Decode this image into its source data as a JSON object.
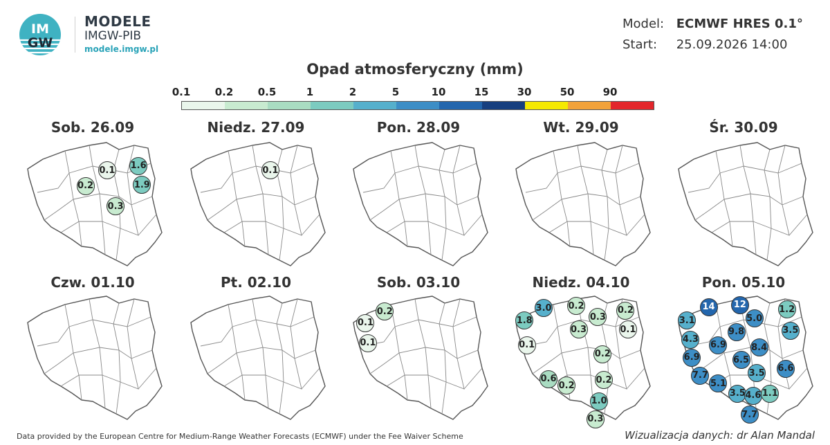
{
  "brand": {
    "title": "MODELE",
    "subtitle": "IMGW-PIB",
    "url": "modele.imgw.pl",
    "logo_text_top": "IM",
    "logo_text_bottom": "GW"
  },
  "meta": {
    "model_label": "Model:",
    "model_value": "ECMWF HRES 0.1°",
    "start_label": "Start:",
    "start_value": "25.09.2026 14:00"
  },
  "legend": {
    "title": "Opad atmosferyczny (mm)",
    "ticks": [
      "0.1",
      "0.2",
      "0.5",
      "1",
      "2",
      "5",
      "10",
      "15",
      "30",
      "50",
      "90"
    ],
    "colors": [
      "#eaf6ec",
      "#c8ebd0",
      "#a9dcc2",
      "#7ccbc0",
      "#56b0cc",
      "#3d8ec6",
      "#2366ad",
      "#173f7f",
      "#f5e900",
      "#f2a23a",
      "#e3262b"
    ]
  },
  "days": [
    {
      "label": "Sob. 26.09",
      "points": [
        {
          "v": "0.1",
          "x": 0.62,
          "y": 0.18
        },
        {
          "v": "1.6",
          "x": 0.88,
          "y": 0.14
        },
        {
          "v": "0.2",
          "x": 0.44,
          "y": 0.32
        },
        {
          "v": "1.9",
          "x": 0.91,
          "y": 0.31
        },
        {
          "v": "0.3",
          "x": 0.69,
          "y": 0.5
        }
      ]
    },
    {
      "label": "Niedz. 27.09",
      "points": [
        {
          "v": "0.1",
          "x": 0.62,
          "y": 0.18
        }
      ]
    },
    {
      "label": "Pon. 28.09",
      "points": []
    },
    {
      "label": "Wt. 29.09",
      "points": []
    },
    {
      "label": "Śr. 30.09",
      "points": []
    },
    {
      "label": "Czw. 01.10",
      "points": []
    },
    {
      "label": "Pt. 02.10",
      "points": []
    },
    {
      "label": "Sob. 03.10",
      "points": [
        {
          "v": "0.2",
          "x": 0.22,
          "y": 0.07
        },
        {
          "v": "0.1",
          "x": 0.06,
          "y": 0.17
        },
        {
          "v": "0.1",
          "x": 0.08,
          "y": 0.35
        }
      ]
    },
    {
      "label": "Niedz. 04.10",
      "points": [
        {
          "v": "3.0",
          "x": 0.19,
          "y": 0.04
        },
        {
          "v": "0.2",
          "x": 0.46,
          "y": 0.02
        },
        {
          "v": "0.2",
          "x": 0.87,
          "y": 0.06
        },
        {
          "v": "1.8",
          "x": 0.03,
          "y": 0.15
        },
        {
          "v": "0.3",
          "x": 0.64,
          "y": 0.12
        },
        {
          "v": "0.1",
          "x": 0.89,
          "y": 0.23
        },
        {
          "v": "0.3",
          "x": 0.48,
          "y": 0.23
        },
        {
          "v": "0.1",
          "x": 0.05,
          "y": 0.37
        },
        {
          "v": "0.2",
          "x": 0.68,
          "y": 0.45
        },
        {
          "v": "0.6",
          "x": 0.23,
          "y": 0.67
        },
        {
          "v": "0.2",
          "x": 0.38,
          "y": 0.73
        },
        {
          "v": "0.2",
          "x": 0.69,
          "y": 0.68
        },
        {
          "v": "1.0",
          "x": 0.65,
          "y": 0.87
        },
        {
          "v": "0.3",
          "x": 0.62,
          "y": 1.03
        }
      ]
    },
    {
      "label": "Pon. 05.10",
      "points": [
        {
          "v": "14",
          "x": 0.21,
          "y": 0.03
        },
        {
          "v": "12",
          "x": 0.47,
          "y": 0.01
        },
        {
          "v": "1.2",
          "x": 0.86,
          "y": 0.05
        },
        {
          "v": "3.1",
          "x": 0.03,
          "y": 0.15
        },
        {
          "v": "5.0",
          "x": 0.59,
          "y": 0.13
        },
        {
          "v": "3.5",
          "x": 0.89,
          "y": 0.24
        },
        {
          "v": "4.3",
          "x": 0.06,
          "y": 0.32
        },
        {
          "v": "9.8",
          "x": 0.44,
          "y": 0.25
        },
        {
          "v": "6.9",
          "x": 0.29,
          "y": 0.37
        },
        {
          "v": "8.4",
          "x": 0.63,
          "y": 0.39
        },
        {
          "v": "6.9",
          "x": 0.07,
          "y": 0.48
        },
        {
          "v": "6.5",
          "x": 0.48,
          "y": 0.5
        },
        {
          "v": "6.6",
          "x": 0.85,
          "y": 0.58
        },
        {
          "v": "7.7",
          "x": 0.14,
          "y": 0.64
        },
        {
          "v": "3.5",
          "x": 0.61,
          "y": 0.62
        },
        {
          "v": "5.1",
          "x": 0.29,
          "y": 0.71
        },
        {
          "v": "3.5",
          "x": 0.45,
          "y": 0.8
        },
        {
          "v": "4.6",
          "x": 0.58,
          "y": 0.82
        },
        {
          "v": "1.1",
          "x": 0.72,
          "y": 0.8
        },
        {
          "v": "7.7",
          "x": 0.55,
          "y": 0.99
        }
      ]
    }
  ],
  "footer": {
    "source": "Data provided by the European Centre for Medium-Range Weather Forecasts (ECMWF) under the Fee Waiver Scheme",
    "credit": "Wizualizacja danych: dr Alan Mandal"
  }
}
